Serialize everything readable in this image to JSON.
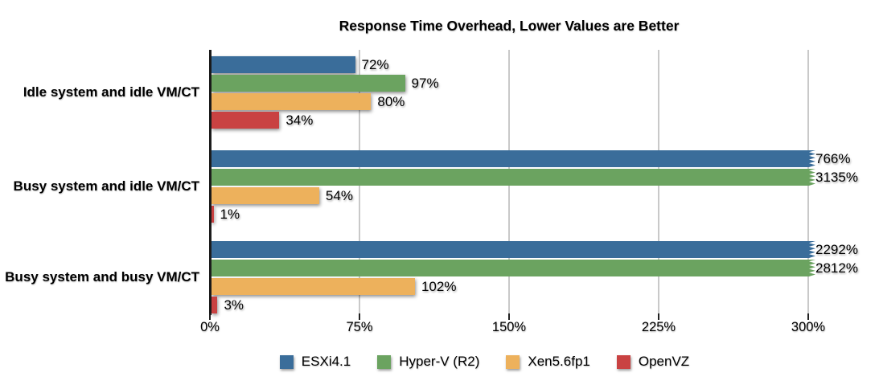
{
  "chart_data": {
    "type": "bar",
    "orientation": "horizontal",
    "title": "Response Time Overhead, Lower Values are Better",
    "categories": [
      "Idle system and idle VM/CT",
      "Busy system and idle VM/CT",
      "Busy system and busy VM/CT"
    ],
    "series": [
      {
        "name": "ESXi4.1",
        "color": "#3a6d9a",
        "values": [
          72,
          766,
          2292
        ],
        "labels": [
          "72%",
          "766%",
          "2292%"
        ]
      },
      {
        "name": "Hyper-V (R2)",
        "color": "#6ba360",
        "values": [
          97,
          3135,
          2812
        ],
        "labels": [
          "97%",
          "3135%",
          "2812%"
        ]
      },
      {
        "name": "Xen5.6fp1",
        "color": "#edb15c",
        "values": [
          80,
          54,
          102
        ],
        "labels": [
          "80%",
          "54%",
          "102%"
        ]
      },
      {
        "name": "OpenVZ",
        "color": "#c94242",
        "values": [
          34,
          1,
          3
        ],
        "labels": [
          "34%",
          "1%",
          "3%"
        ]
      }
    ],
    "x_axis": {
      "tick_labels": [
        "0%",
        "75%",
        "150%",
        "225%",
        "300%"
      ],
      "min": 0,
      "max": 300,
      "clip_at": 300
    },
    "legend_position": "bottom",
    "grid": "vertical-only",
    "colors": {
      "axis": "#1c1c1c",
      "gridline": "#c9c9c9",
      "background": "#ffffff",
      "text": "#000000"
    }
  }
}
